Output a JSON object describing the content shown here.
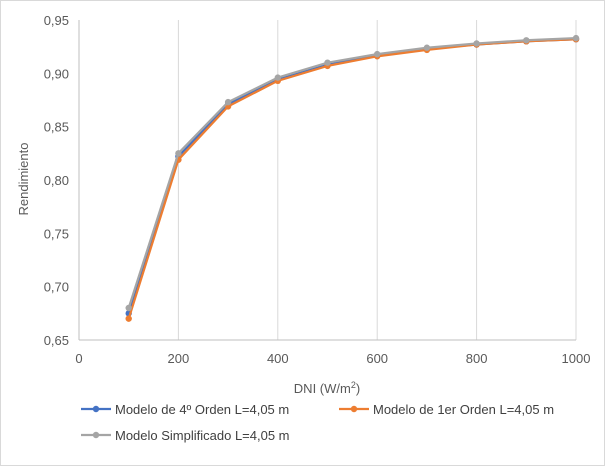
{
  "chart_data": {
    "type": "line",
    "title": "",
    "xlabel": "DNI (W/m",
    "xlabel_sup": "2",
    "xlabel_end": ")",
    "ylabel": "Rendimiento",
    "xlim": [
      0,
      1000
    ],
    "ylim": [
      0.65,
      0.95
    ],
    "xticks": [
      0,
      200,
      400,
      600,
      800,
      1000
    ],
    "xtick_labels": [
      "0",
      "200",
      "400",
      "600",
      "800",
      "1000"
    ],
    "yticks": [
      0.65,
      0.7,
      0.75,
      0.8,
      0.85,
      0.9,
      0.95
    ],
    "ytick_labels": [
      "0,65",
      "0,70",
      "0,75",
      "0,80",
      "0,85",
      "0,90",
      "0,95"
    ],
    "grid": "vertical",
    "legend_position": "bottom",
    "x": [
      100,
      200,
      300,
      400,
      500,
      600,
      700,
      800,
      900,
      1000
    ],
    "series": [
      {
        "name": "Modelo de  4º Orden L=4,05 m",
        "color": "#4472c4",
        "values": [
          0.675,
          0.822,
          0.871,
          0.894,
          0.908,
          0.917,
          0.923,
          0.927,
          0.93,
          0.932
        ]
      },
      {
        "name": "Modelo de 1er Orden L=4,05 m",
        "color": "#ed7d31",
        "values": [
          0.67,
          0.819,
          0.869,
          0.893,
          0.907,
          0.916,
          0.922,
          0.927,
          0.93,
          0.932
        ]
      },
      {
        "name": "Modelo Simplificado L=4,05 m",
        "color": "#a5a5a5",
        "values": [
          0.68,
          0.825,
          0.873,
          0.896,
          0.91,
          0.918,
          0.924,
          0.928,
          0.931,
          0.933
        ]
      }
    ]
  }
}
